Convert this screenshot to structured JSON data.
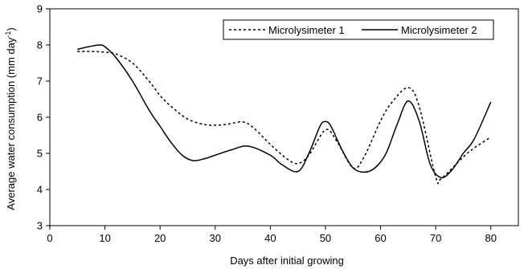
{
  "chart_data": {
    "type": "line",
    "title": "",
    "xlabel": "Days after initial growing",
    "ylabel": {
      "main": "Average water consumption (mm day",
      "superscript": "-1",
      "close": ")"
    },
    "xlim": [
      0,
      85
    ],
    "ylim": [
      3,
      9
    ],
    "xticks": [
      "0",
      "10",
      "20",
      "30",
      "40",
      "50",
      "60",
      "70",
      "80"
    ],
    "yticks": [
      "3",
      "4",
      "5",
      "6",
      "7",
      "8",
      "9"
    ],
    "grid": false,
    "legend_position": "top-right",
    "series": [
      {
        "name": "Microlysimeter 1",
        "style": "dashed",
        "color": "#000000",
        "x": [
          5,
          8,
          10,
          12,
          15,
          18,
          20,
          22,
          25,
          28,
          30,
          32,
          35,
          37,
          40,
          43,
          45,
          47,
          50,
          52,
          55,
          57,
          60,
          62,
          65,
          67,
          70,
          71,
          75,
          77,
          80
        ],
        "y": [
          7.82,
          7.82,
          7.8,
          7.75,
          7.5,
          7.0,
          6.6,
          6.3,
          5.95,
          5.8,
          5.78,
          5.8,
          5.87,
          5.7,
          5.25,
          4.85,
          4.72,
          4.95,
          5.65,
          5.35,
          4.6,
          4.9,
          5.9,
          6.4,
          6.82,
          6.3,
          4.35,
          4.3,
          4.9,
          5.15,
          5.45
        ]
      },
      {
        "name": "Microlysimeter 2",
        "style": "solid",
        "color": "#000000",
        "x": [
          5,
          7,
          9,
          10,
          12,
          15,
          18,
          20,
          22,
          24,
          26,
          28,
          30,
          33,
          36,
          40,
          42,
          45,
          47,
          49,
          50,
          51,
          53,
          55,
          57,
          59,
          61,
          63,
          65,
          67,
          69,
          71,
          73,
          75,
          77,
          80
        ],
        "y": [
          7.88,
          7.95,
          8.0,
          7.95,
          7.65,
          7.0,
          6.2,
          5.75,
          5.3,
          4.95,
          4.8,
          4.85,
          4.95,
          5.1,
          5.2,
          4.95,
          4.7,
          4.5,
          5.0,
          5.75,
          5.88,
          5.75,
          5.1,
          4.6,
          4.48,
          4.6,
          5.0,
          5.8,
          6.45,
          5.9,
          4.7,
          4.33,
          4.55,
          5.0,
          5.4,
          6.42
        ]
      }
    ]
  }
}
